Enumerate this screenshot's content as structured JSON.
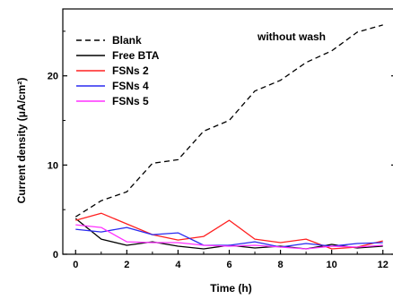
{
  "chart_data": {
    "type": "line",
    "xlabel": "Time (h)",
    "ylabel": "Current density (μA/cm²)",
    "xlim": [
      -0.5,
      12.5
    ],
    "ylim": [
      0,
      27.5
    ],
    "xticks": [
      0,
      2,
      4,
      6,
      8,
      10,
      12
    ],
    "yticks": [
      0,
      10,
      20
    ],
    "grid": false,
    "legend_position": "top-left",
    "annotation": "without wash",
    "x": [
      0,
      1,
      2,
      3,
      4,
      5,
      6,
      7,
      8,
      9,
      10,
      11,
      12
    ],
    "series": [
      {
        "name": "Blank",
        "color": "#000000",
        "dash": "dashed",
        "values": [
          4.2,
          6.0,
          7.0,
          10.2,
          10.6,
          13.8,
          15.0,
          18.3,
          19.5,
          21.5,
          22.8,
          24.9,
          25.7
        ]
      },
      {
        "name": "Free BTA",
        "color": "#000000",
        "dash": "solid",
        "values": [
          4.0,
          1.7,
          1.0,
          1.4,
          0.9,
          0.6,
          1.0,
          0.7,
          0.9,
          0.6,
          1.1,
          0.7,
          0.9
        ]
      },
      {
        "name": "FSNs 2",
        "color": "#ff2020",
        "dash": "solid",
        "values": [
          3.8,
          4.6,
          3.4,
          2.2,
          1.6,
          2.0,
          3.8,
          1.7,
          1.3,
          1.7,
          0.6,
          0.8,
          1.5
        ]
      },
      {
        "name": "FSNs 4",
        "color": "#2a2af0",
        "dash": "solid",
        "values": [
          2.8,
          2.5,
          3.0,
          2.2,
          2.4,
          1.0,
          1.0,
          1.4,
          0.8,
          1.2,
          0.9,
          1.2,
          1.3
        ]
      },
      {
        "name": "FSNs 5",
        "color": "#ff30ff",
        "dash": "solid",
        "values": [
          3.3,
          3.0,
          1.4,
          1.3,
          1.3,
          1.0,
          0.9,
          1.0,
          0.8,
          0.6,
          0.9,
          0.8,
          1.0
        ]
      }
    ]
  }
}
